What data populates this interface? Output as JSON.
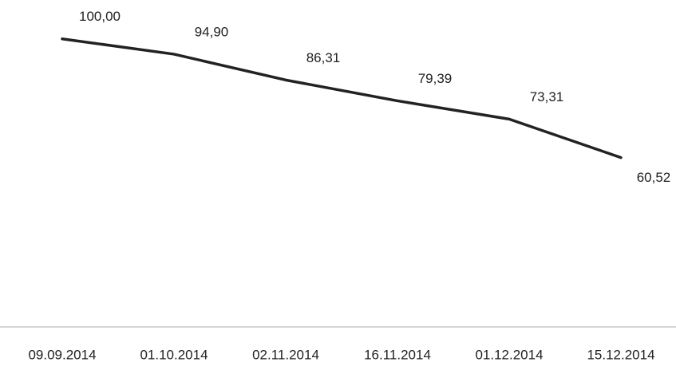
{
  "chart_data": {
    "type": "line",
    "categories": [
      "09.09.2014",
      "01.10.2014",
      "02.11.2014",
      "16.11.2014",
      "01.12.2014",
      "15.12.2014"
    ],
    "series": [
      {
        "color": "#222222",
        "values": [
          100,
          94.9,
          86.31,
          79.39,
          73.31,
          60.52
        ],
        "value_labels": [
          "100,00",
          "94,90",
          "86,31",
          "79,39",
          "73,31",
          "60,52"
        ]
      }
    ],
    "ylim": [
      5,
      110
    ]
  }
}
